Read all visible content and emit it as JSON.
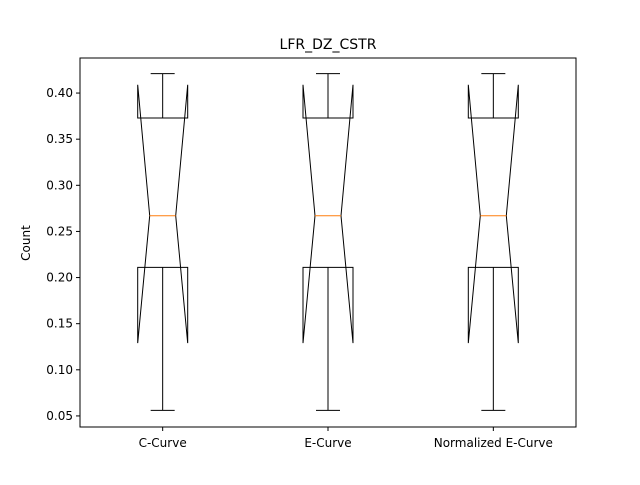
{
  "chart_data": {
    "type": "boxplot",
    "title": "LFR_DZ_CSTR",
    "xlabel": "",
    "ylabel": "Count",
    "ylim": [
      0.038,
      0.438
    ],
    "yticks": [
      0.05,
      0.1,
      0.15,
      0.2,
      0.25,
      0.3,
      0.35,
      0.4
    ],
    "ytick_labels": [
      "0.05",
      "0.10",
      "0.15",
      "0.20",
      "0.25",
      "0.30",
      "0.35",
      "0.40"
    ],
    "notched": true,
    "grid": false,
    "categories": [
      "C-Curve",
      "E-Curve",
      "Normalized E-Curve"
    ],
    "boxes": [
      {
        "whisker_low": 0.056,
        "q1": 0.211,
        "median": 0.267,
        "q3": 0.373,
        "whisker_high": 0.421,
        "notch_low": 0.129,
        "notch_high": 0.409
      },
      {
        "whisker_low": 0.056,
        "q1": 0.211,
        "median": 0.267,
        "q3": 0.373,
        "whisker_high": 0.421,
        "notch_low": 0.129,
        "notch_high": 0.409
      },
      {
        "whisker_low": 0.056,
        "q1": 0.211,
        "median": 0.267,
        "q3": 0.373,
        "whisker_high": 0.421,
        "notch_low": 0.129,
        "notch_high": 0.409
      }
    ],
    "colors": {
      "box": "#000000",
      "median": "#ff7f0e"
    }
  }
}
